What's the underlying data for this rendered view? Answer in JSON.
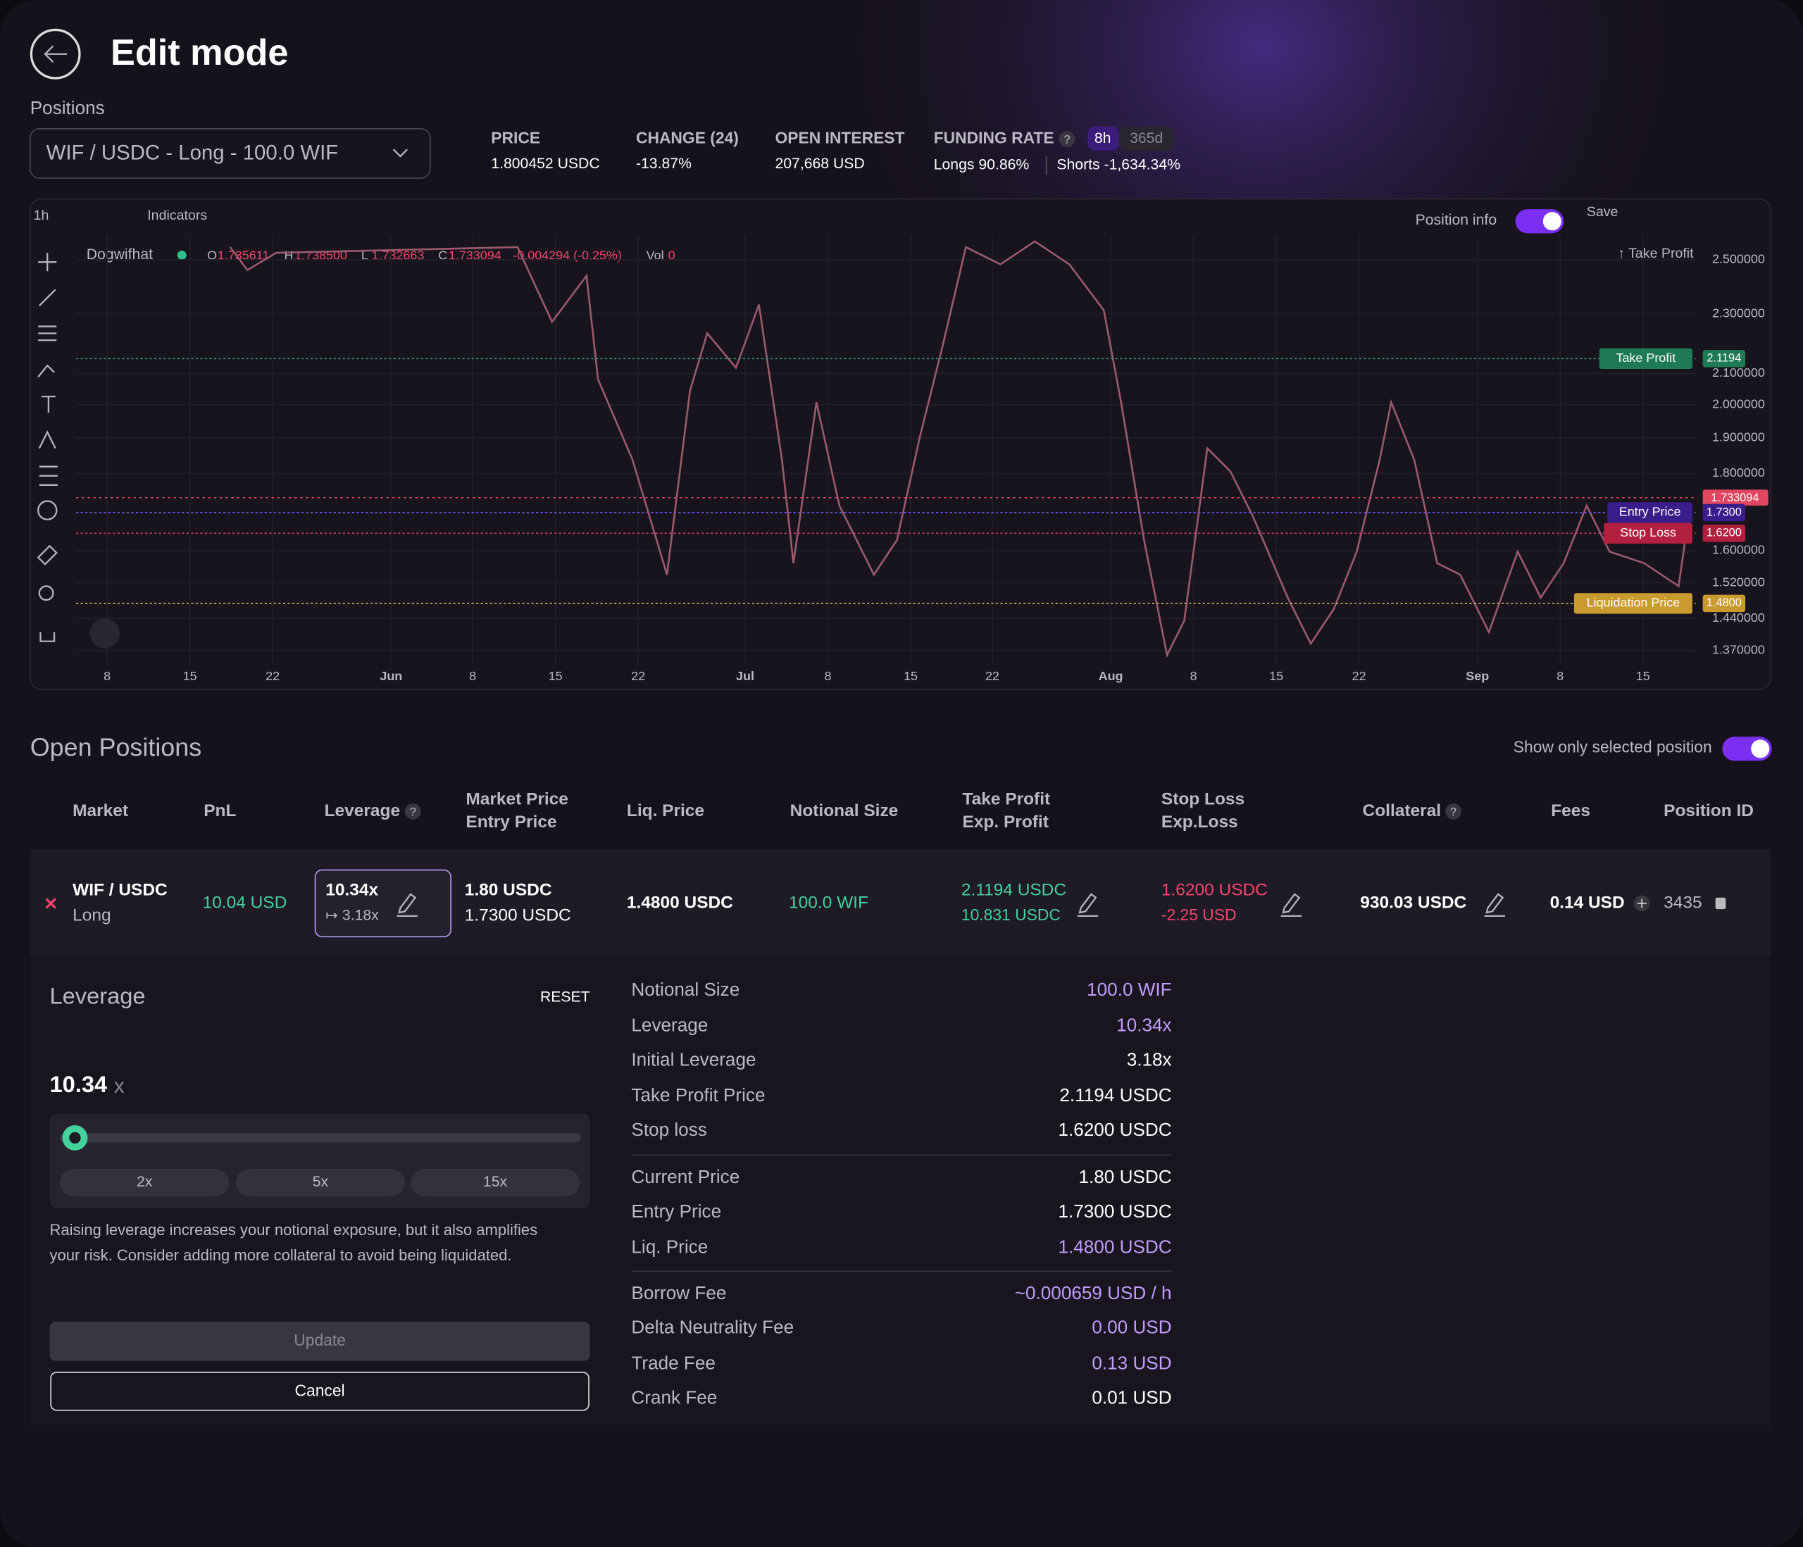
{
  "header": {
    "title": "Edit mode",
    "positions_label": "Positions",
    "position_select": "WIF / USDC - Long - 100.0 WIF"
  },
  "stats": [
    {
      "label": "PRICE",
      "value": "1.800452 USDC"
    },
    {
      "label": "CHANGE (24)",
      "value": "-13.87%"
    },
    {
      "label": "OPEN INTEREST",
      "value": "207,668 USD"
    }
  ],
  "funding": {
    "label": "FUNDING RATE",
    "help": "?",
    "tabs": [
      "8h",
      "365d"
    ],
    "longs": "Longs 90.86%",
    "shorts": "Shorts -1,634.34%"
  },
  "toolbar": {
    "interval": "1h",
    "indicators": "Indicators",
    "position_info": "Position info",
    "save": "Save"
  },
  "chart": {
    "symbol": "Dogwifhat",
    "ohlc": [
      {
        "key": "O",
        "value": "1.735611"
      },
      {
        "key": "H",
        "value": "1.738500"
      },
      {
        "key": "L",
        "value": "1.732663"
      },
      {
        "key": "C",
        "value": "1.733094"
      }
    ],
    "change": "-0.004294 (-0.25%)",
    "volume": {
      "key": "Vol",
      "value": "0"
    },
    "price_scale": [
      "2.500000",
      "2.300000",
      "2.100000",
      "2.000000",
      "1.900000",
      "1.800000",
      "1.600000",
      "1.520000",
      "1.440000",
      "1.370000"
    ],
    "time_scale": [
      "8",
      "15",
      "22",
      "Jun",
      "8",
      "15",
      "22",
      "Jul",
      "8",
      "15",
      "22",
      "Aug",
      "8",
      "15",
      "22",
      "Sep",
      "8",
      "15"
    ],
    "top_marker": "↑ Take Profit",
    "last_price": "1.733094",
    "levels": [
      {
        "label": "Take Profit",
        "price": "2.1194"
      },
      {
        "label": "Entry Price",
        "price": "1.7300"
      },
      {
        "label": "Stop Loss",
        "price": "1.6200"
      },
      {
        "label": "Liquidation Price",
        "price": "1.4800"
      }
    ]
  },
  "open_positions": {
    "title": "Open Positions",
    "toggle_label": "Show only selected position",
    "columns": [
      [
        "Market"
      ],
      [
        "PnL"
      ],
      [
        "Leverage"
      ],
      [
        "Market Price",
        "Entry Price"
      ],
      [
        "Liq. Price"
      ],
      [
        "Notional Size"
      ],
      [
        "Take Profit",
        "Exp. Profit"
      ],
      [
        "Stop Loss",
        "Exp.Loss"
      ],
      [
        "Collateral"
      ],
      [
        "Fees"
      ],
      [
        "Position ID"
      ]
    ],
    "row": {
      "market": "WIF / USDC",
      "side": "Long",
      "pnl": "10.04 USD",
      "leverage": "10.34x",
      "initial_leverage": "↦ 3.18x",
      "market_price": "1.80 USDC",
      "entry_price": "1.7300 USDC",
      "liq_price": "1.4800 USDC",
      "notional_size": "100.0 WIF",
      "take_profit": "2.1194 USDC",
      "exp_profit": "10.831 USDC",
      "stop_loss": "1.6200 USDC",
      "exp_loss": "-2.25 USD",
      "collateral": "930.03 USDC",
      "fees": "0.14 USD",
      "position_id": "3435"
    }
  },
  "leverage_panel": {
    "title": "Leverage",
    "reset": "RESET",
    "value": "10.34",
    "unit": "x",
    "presets": [
      "2x",
      "5x",
      "15x"
    ],
    "description": [
      "Raising leverage increases your notional exposure, but it also amplifies",
      "your risk. Consider adding more collateral to avoid being liquidated."
    ],
    "update": "Update",
    "cancel": "Cancel"
  },
  "summary": [
    [
      {
        "label": "Notional Size",
        "value": "100.0 WIF"
      },
      {
        "label": "Leverage",
        "value": "10.34x"
      },
      {
        "label": "Initial Leverage",
        "value": "3.18x"
      },
      {
        "label": "Take Profit Price",
        "value": "2.1194 USDC"
      },
      {
        "label": "Stop loss",
        "value": "1.6200 USDC"
      }
    ],
    [
      {
        "label": "Current Price",
        "value": "1.80 USDC"
      },
      {
        "label": "Entry Price",
        "value": "1.7300 USDC"
      },
      {
        "label": "Liq. Price",
        "value": "1.4800 USDC"
      }
    ],
    [
      {
        "label": "Borrow Fee",
        "value": "~0.000659 USD / h"
      },
      {
        "label": "Delta Neutrality Fee",
        "value": "0.00 USD"
      },
      {
        "label": "Trade Fee",
        "value": "0.13 USD"
      },
      {
        "label": "Crank Fee",
        "value": "0.01 USD"
      }
    ]
  ]
}
